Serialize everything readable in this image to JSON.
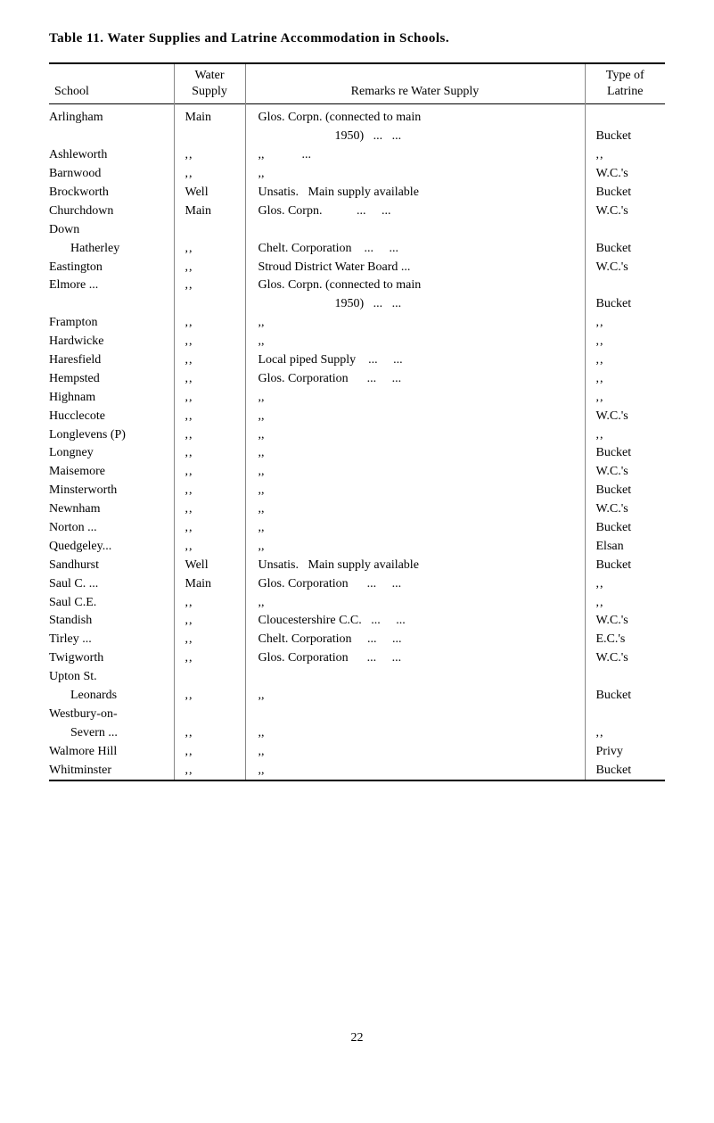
{
  "title_prefix": "Table 11.",
  "title_main": "Water Supplies and Latrine Accommodation in Schools.",
  "headers": {
    "school": "School",
    "supply_line1": "Water",
    "supply_line2": "Supply",
    "remarks": "Remarks re Water Supply",
    "latrine_line1": "Type of",
    "latrine_line2": "Latrine"
  },
  "rows": [
    {
      "school": "Arlingham",
      "supply": "Main",
      "remarks": "Glos. Corpn. (connected to main",
      "latrine": ""
    },
    {
      "school": "",
      "supply": "",
      "remarks_indent": "1950)   ...   ...",
      "latrine": "Bucket"
    },
    {
      "school": "Ashleworth",
      "supply": ",,",
      "remarks": ",,            ...",
      "latrine": ",,"
    },
    {
      "school": "Barnwood",
      "supply": ",,",
      "remarks": ",,",
      "latrine": "W.C.'s"
    },
    {
      "school": "Brockworth",
      "supply": "Well",
      "remarks": "Unsatis.   Main supply available",
      "latrine": "Bucket"
    },
    {
      "school": "Churchdown",
      "supply": "Main",
      "remarks": "Glos. Corpn.           ...     ...",
      "latrine": "W.C.'s"
    },
    {
      "school": "Down",
      "supply": "",
      "remarks": "",
      "latrine": ""
    },
    {
      "school_indent": "Hatherley",
      "supply": ",,",
      "remarks": "Chelt. Corporation    ...     ...",
      "latrine": "Bucket"
    },
    {
      "school": "Eastington",
      "supply": ",,",
      "remarks": "Stroud District Water Board ...",
      "latrine": "W.C.'s"
    },
    {
      "school": "Elmore   ...",
      "supply": ",,",
      "remarks": "Glos. Corpn. (connected to main",
      "latrine": ""
    },
    {
      "school": "",
      "supply": "",
      "remarks_indent": "1950)   ...   ...",
      "latrine": "Bucket"
    },
    {
      "school": "Frampton",
      "supply": ",,",
      "remarks": ",,",
      "latrine": ",,"
    },
    {
      "school": "Hardwicke",
      "supply": ",,",
      "remarks": ",,",
      "latrine": ",,"
    },
    {
      "school": "Haresfield",
      "supply": ",,",
      "remarks": "Local piped Supply    ...     ...",
      "latrine": ",,"
    },
    {
      "school": "Hempsted",
      "supply": ",,",
      "remarks": "Glos. Corporation      ...     ...",
      "latrine": ",,"
    },
    {
      "school": "Highnam",
      "supply": ",,",
      "remarks": ",,",
      "latrine": ",,"
    },
    {
      "school": "Hucclecote",
      "supply": ",,",
      "remarks": ",,",
      "latrine": "W.C.'s"
    },
    {
      "school": "Longlevens (P)",
      "supply": ",,",
      "remarks": ",,",
      "latrine": ",,"
    },
    {
      "school": "Longney",
      "supply": ",,",
      "remarks": ",,",
      "latrine": "Bucket"
    },
    {
      "school": "Maisemore",
      "supply": ",,",
      "remarks": ",,",
      "latrine": "W.C.'s"
    },
    {
      "school": "Minsterworth",
      "supply": ",,",
      "remarks": ",,",
      "latrine": "Bucket"
    },
    {
      "school": "Newnham",
      "supply": ",,",
      "remarks": ",,",
      "latrine": "W.C.'s"
    },
    {
      "school": "Norton   ...",
      "supply": ",,",
      "remarks": ",,",
      "latrine": "Bucket"
    },
    {
      "school": "Quedgeley...",
      "supply": ",,",
      "remarks": ",,",
      "latrine": "Elsan"
    },
    {
      "school": "Sandhurst",
      "supply": "Well",
      "remarks": "Unsatis.   Main supply available",
      "latrine": "Bucket"
    },
    {
      "school": "Saul C.   ...",
      "supply": "Main",
      "remarks": "Glos. Corporation      ...     ...",
      "latrine": ",,"
    },
    {
      "school": "Saul C.E.",
      "supply": ",,",
      "remarks": ",,",
      "latrine": ",,"
    },
    {
      "school": "Standish",
      "supply": ",,",
      "remarks": "Cloucestershire C.C.   ...     ...",
      "latrine": "W.C.'s"
    },
    {
      "school": "Tirley     ...",
      "supply": ",,",
      "remarks": "Chelt. Corporation     ...     ...",
      "latrine": "E.C.'s"
    },
    {
      "school": "Twigworth",
      "supply": ",,",
      "remarks": "Glos. Corporation      ...     ...",
      "latrine": "W.C.'s"
    },
    {
      "school": "Upton St.",
      "supply": "",
      "remarks": "",
      "latrine": ""
    },
    {
      "school_indent": "Leonards",
      "supply": ",,",
      "remarks": ",,",
      "latrine": "Bucket"
    },
    {
      "school": "Westbury-on-",
      "supply": "",
      "remarks": "",
      "latrine": ""
    },
    {
      "school_indent": "Severn ...",
      "supply": ",,",
      "remarks": ",,",
      "latrine": ",,"
    },
    {
      "school": "Walmore Hill",
      "supply": ",,",
      "remarks": ",,",
      "latrine": "Privy"
    },
    {
      "school": "Whitminster",
      "supply": ",,",
      "remarks": ",,",
      "latrine": "Bucket"
    }
  ],
  "page_number": "22",
  "colors": {
    "text": "#000000",
    "background": "#ffffff",
    "border": "#000000",
    "light_border": "#888888"
  },
  "font_sizes": {
    "title": 15,
    "body": 14
  }
}
